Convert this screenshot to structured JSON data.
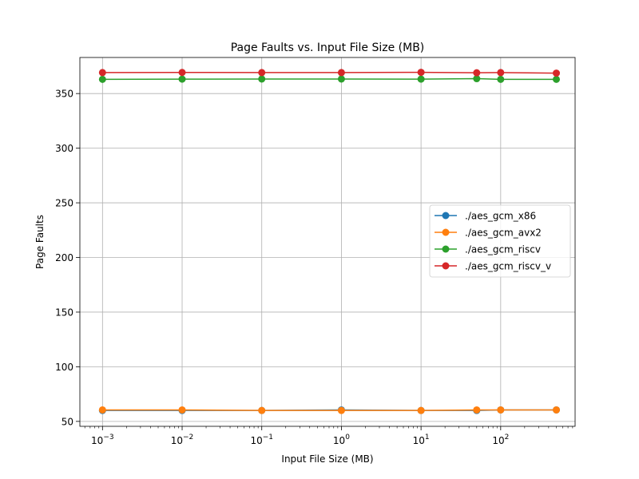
{
  "chart_data": {
    "type": "line",
    "title": "Page Faults vs. Input File Size (MB)",
    "xlabel": "Input File Size (MB)",
    "ylabel": "Page Faults",
    "xscale": "log",
    "xlim": [
      0.00052,
      860
    ],
    "ylim": [
      45.5,
      383
    ],
    "grid": true,
    "legend_position": "center-right",
    "x": [
      0.001,
      0.01,
      0.1,
      1,
      10,
      50,
      100,
      500
    ],
    "xticks": [
      {
        "value": 0.001,
        "base": "10",
        "exp": "−3"
      },
      {
        "value": 0.01,
        "base": "10",
        "exp": "−2"
      },
      {
        "value": 0.1,
        "base": "10",
        "exp": "−1"
      },
      {
        "value": 1,
        "base": "10",
        "exp": "0"
      },
      {
        "value": 10,
        "base": "10",
        "exp": "1"
      },
      {
        "value": 100,
        "base": "10",
        "exp": "2"
      }
    ],
    "yticks": [
      50,
      100,
      150,
      200,
      250,
      300,
      350
    ],
    "series": [
      {
        "name": "./aes_gcm_x86",
        "color": "#1f77b4",
        "values": [
          60,
          60,
          60,
          60.5,
          60,
          60,
          60.5,
          60.5
        ]
      },
      {
        "name": "./aes_gcm_avx2",
        "color": "#ff7f0e",
        "values": [
          60.5,
          60.5,
          60,
          60,
          60,
          60.5,
          60.5,
          60.5
        ]
      },
      {
        "name": "./aes_gcm_riscv",
        "color": "#2ca02c",
        "values": [
          363,
          363.2,
          363.3,
          363.3,
          363.2,
          363.6,
          363,
          363
        ]
      },
      {
        "name": "./aes_gcm_riscv_v",
        "color": "#d62728",
        "values": [
          369.2,
          369.3,
          369.2,
          369.2,
          369.4,
          369,
          369.2,
          368.7
        ]
      }
    ]
  }
}
